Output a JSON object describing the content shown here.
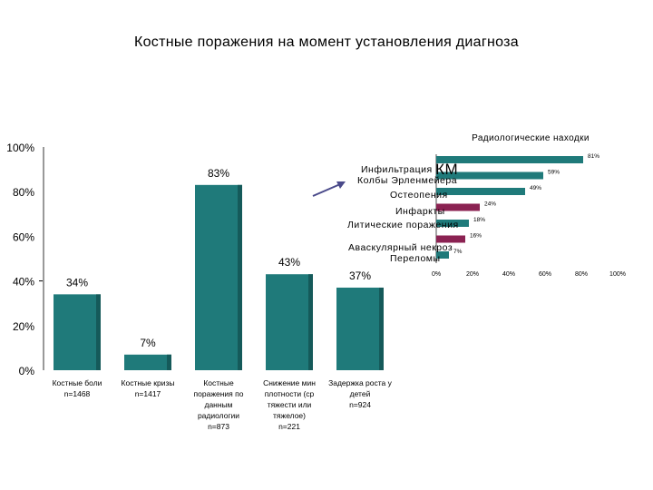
{
  "slide": {
    "title": "Костные поражения на момент установления диагноза"
  },
  "colors": {
    "main_bar": "#1f7a7a",
    "main_bar_shade": "#155a5a",
    "inset_bar_teal": "#1f7a7a",
    "inset_bar_purple": "#8b2252",
    "arrow": "#4a4a8a"
  },
  "chart_data": [
    {
      "type": "bar",
      "title": "",
      "xlabel": "",
      "ylabel": "",
      "ylim": [
        0,
        100
      ],
      "yticks": [
        "0%",
        "20%",
        "40%",
        "60%",
        "80%",
        "100%"
      ],
      "grid": false,
      "categories": [
        [
          "Костные боли",
          "n=1468"
        ],
        [
          "Костные кризы",
          "n=1417"
        ],
        [
          "Костные",
          "поражения по",
          "данным",
          "радиологии",
          "n=873"
        ],
        [
          "Снижение мин",
          "плотности (ср",
          "тяжести или",
          "тяжелое)",
          "n=221"
        ],
        [
          "Задержка роста у",
          "детей",
          "n=924"
        ]
      ],
      "values": [
        34,
        7,
        83,
        43,
        37
      ],
      "value_labels": [
        "34%",
        "7%",
        "83%",
        "43%",
        "37%"
      ]
    },
    {
      "type": "bar",
      "orientation": "horizontal",
      "title": "Радиологические находки",
      "xlim": [
        0,
        100
      ],
      "xticks": [
        "0%",
        "20%",
        "40%",
        "60%",
        "80%",
        "100%"
      ],
      "categories": [
        "Инфильтрация КМ",
        "Колбы Эрленмейера",
        "Остеопения",
        "Инфаркты",
        "Литические поражения",
        "Аваскулярный некроз",
        "Переломы"
      ],
      "values": [
        81,
        59,
        49,
        24,
        18,
        16,
        7
      ],
      "value_labels": [
        "81%",
        "59%",
        "49%",
        "24%",
        "18%",
        "16%",
        "7%"
      ],
      "bar_colors": [
        "teal",
        "teal",
        "teal",
        "purple",
        "teal",
        "purple",
        "teal"
      ]
    }
  ]
}
